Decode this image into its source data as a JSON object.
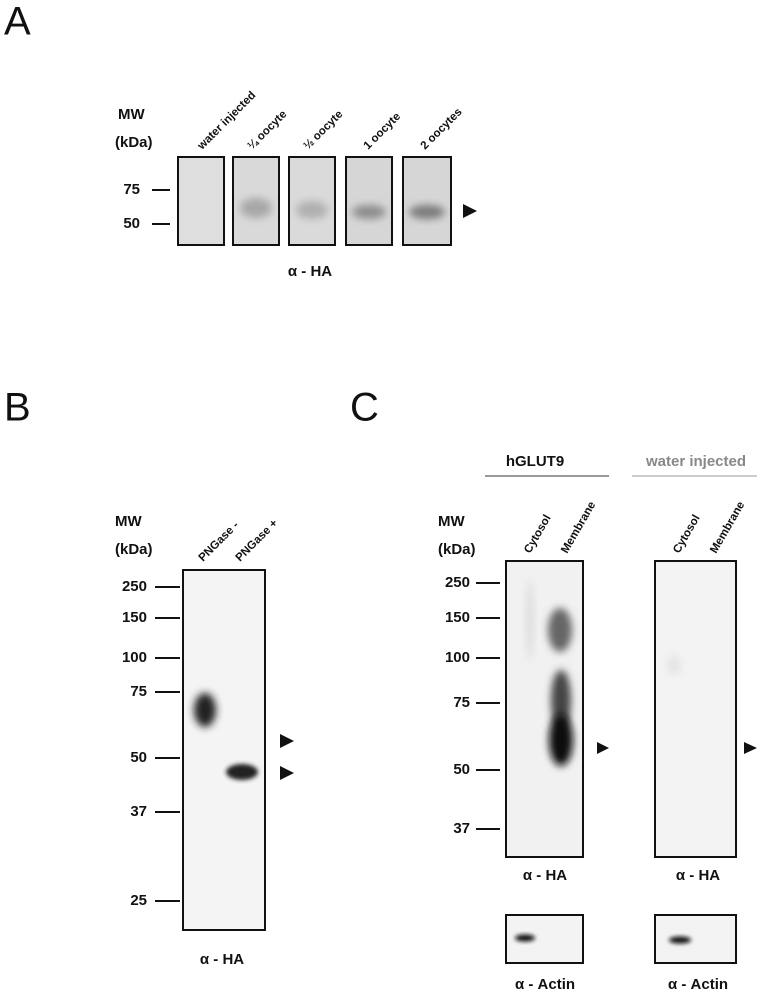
{
  "panel_a": {
    "letter": "A",
    "mw": "MW",
    "kda": "(kDa)",
    "lanes": [
      "water injected",
      "¼ oocyte",
      "½ oocyte",
      "1 oocyte",
      "2 oocytes"
    ],
    "mw_ticks": [
      "75",
      "50"
    ],
    "antibody": "α - HA"
  },
  "panel_b": {
    "letter": "B",
    "mw": "MW",
    "kda": "(kDa)",
    "lanes": [
      "PNGase -",
      "PNGase +"
    ],
    "mw_ticks": [
      "250",
      "150",
      "100",
      "75",
      "50",
      "37",
      "25"
    ],
    "antibody": "α - HA"
  },
  "panel_c": {
    "letter": "C",
    "mw": "MW",
    "kda": "(kDa)",
    "mw_ticks": [
      "250",
      "150",
      "100",
      "75",
      "50",
      "37"
    ],
    "groups": [
      {
        "title": "hGLUT9",
        "lanes": [
          "Cytosol",
          "Membrane"
        ],
        "antibody": "α - HA",
        "loading": "α - Actin"
      },
      {
        "title": "water injected",
        "lanes": [
          "Cytosol",
          "Membrane"
        ],
        "antibody": "α - HA",
        "loading": "α - Actin"
      }
    ]
  }
}
